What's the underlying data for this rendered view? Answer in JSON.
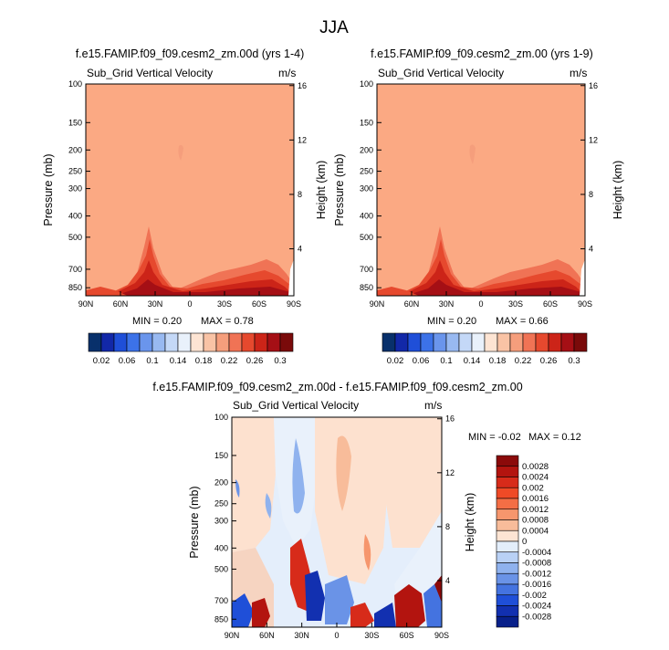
{
  "page_title": "JJA",
  "chart_data": [
    {
      "type": "heatmap",
      "title": "f.e15.FAMIP.f09_f09.cesm2_zm.00d (yrs 1-4)",
      "subtitle": "Sub_Grid Vertical Velocity",
      "units": "m/s",
      "ylabel": "Pressure (mb)",
      "y2label": "Height (km)",
      "x_ticks": [
        "90N",
        "60N",
        "30N",
        "0",
        "30S",
        "60S",
        "90S"
      ],
      "y_ticks": [
        "100",
        "150",
        "200",
        "250",
        "300",
        "400",
        "500",
        "700",
        "850"
      ],
      "y2_ticks": [
        "16",
        "12",
        "8",
        "4"
      ],
      "min_label": "MIN =  0.20",
      "max_label": "MAX =  0.78",
      "min": 0.2,
      "max": 0.78
    },
    {
      "type": "heatmap",
      "title": "f.e15.FAMIP.f09_f09.cesm2_zm.00 (yrs 1-9)",
      "subtitle": "Sub_Grid Vertical Velocity",
      "units": "m/s",
      "ylabel": "Pressure (mb)",
      "y2label": "Height (km)",
      "x_ticks": [
        "90N",
        "60N",
        "30N",
        "0",
        "30S",
        "60S",
        "90S"
      ],
      "y_ticks": [
        "100",
        "150",
        "200",
        "250",
        "300",
        "400",
        "500",
        "700",
        "850"
      ],
      "y2_ticks": [
        "16",
        "12",
        "8",
        "4"
      ],
      "min_label": "MIN =  0.20",
      "max_label": "MAX =  0.66",
      "min": 0.2,
      "max": 0.66
    },
    {
      "type": "heatmap",
      "title": "f.e15.FAMIP.f09_f09.cesm2_zm.00d - f.e15.FAMIP.f09_f09.cesm2_zm.00",
      "subtitle": "Sub_Grid Vertical Velocity",
      "units": "m/s",
      "ylabel": "Pressure (mb)",
      "y2label": "Height (km)",
      "x_ticks": [
        "90N",
        "60N",
        "30N",
        "0",
        "30S",
        "60S",
        "90S"
      ],
      "y_ticks": [
        "100",
        "150",
        "200",
        "250",
        "300",
        "400",
        "500",
        "700",
        "850"
      ],
      "y2_ticks": [
        "16",
        "12",
        "8",
        "4"
      ],
      "min_label": "MIN = -0.02",
      "max_label": "MAX =  0.12",
      "min": -0.02,
      "max": 0.12
    }
  ],
  "colorbar_top": {
    "labels": [
      "0.02",
      "0.06",
      "0.1",
      "0.14",
      "0.18",
      "0.22",
      "0.26",
      "0.3"
    ],
    "colors": [
      "#08306b",
      "#1228a8",
      "#1f4fd8",
      "#3c72e8",
      "#6a95ec",
      "#98b9f1",
      "#c4d8f7",
      "#e9f1fb",
      "#fde4d3",
      "#f9c3a5",
      "#f59e7c",
      "#f07355",
      "#e6492e",
      "#cc2418",
      "#a50f15",
      "#7a0a0a"
    ]
  },
  "colorbar_diff": {
    "labels": [
      "0.0028",
      "0.0024",
      "0.002",
      "0.0016",
      "0.0012",
      "0.0008",
      "0.0004",
      "0",
      "-0.0004",
      "-0.0008",
      "-0.0012",
      "-0.0016",
      "-0.002",
      "-0.0024",
      "-0.0028"
    ],
    "colors": [
      "#8b0a0a",
      "#b3140f",
      "#d72b1a",
      "#ef4a26",
      "#f46e45",
      "#f6966d",
      "#f8bc9a",
      "#fde4d3",
      "#e3eefb",
      "#b9d1f5",
      "#8fb2ee",
      "#6a93e7",
      "#4473e0",
      "#1f4fd8",
      "#1230b0",
      "#08208a"
    ]
  },
  "colors": {
    "field_bg": "#fba983",
    "field_light": "#fbb692",
    "diff_bg": "#e4eefb",
    "diff_warm": "#fde1cf"
  }
}
